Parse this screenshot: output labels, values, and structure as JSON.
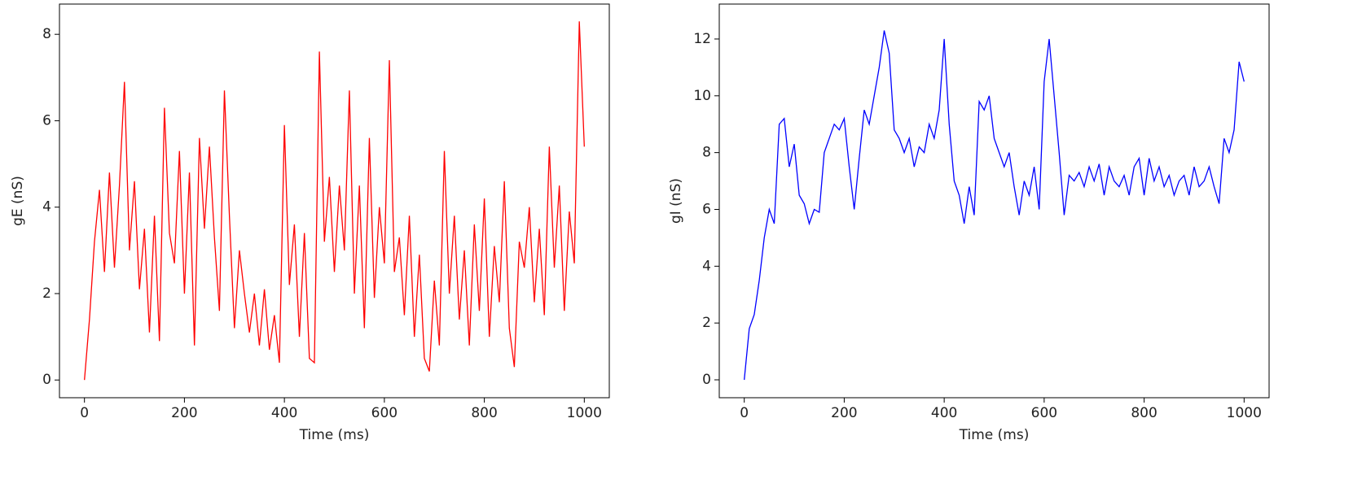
{
  "chart_data": [
    {
      "type": "line",
      "xlabel": "Time (ms)",
      "ylabel": "gE (nS)",
      "x": [
        0,
        10,
        20,
        30,
        40,
        50,
        60,
        70,
        80,
        90,
        100,
        110,
        120,
        130,
        140,
        150,
        160,
        170,
        180,
        190,
        200,
        210,
        220,
        230,
        240,
        250,
        260,
        270,
        280,
        290,
        300,
        310,
        320,
        330,
        340,
        350,
        360,
        370,
        380,
        390,
        400,
        410,
        420,
        430,
        440,
        450,
        460,
        470,
        480,
        490,
        500,
        510,
        520,
        530,
        540,
        550,
        560,
        570,
        580,
        590,
        600,
        610,
        620,
        630,
        640,
        650,
        660,
        670,
        680,
        690,
        700,
        710,
        720,
        730,
        740,
        750,
        760,
        770,
        780,
        790,
        800,
        810,
        820,
        830,
        840,
        850,
        860,
        870,
        880,
        890,
        900,
        910,
        920,
        930,
        940,
        950,
        960,
        970,
        980,
        990,
        1000
      ],
      "series": [
        {
          "color": "#ff0000",
          "values": [
            0,
            1.4,
            3.2,
            4.4,
            2.5,
            4.8,
            2.6,
            4.5,
            6.9,
            3.0,
            4.6,
            2.1,
            3.5,
            1.1,
            3.8,
            0.9,
            6.3,
            3.4,
            2.7,
            5.3,
            2.0,
            4.8,
            0.8,
            5.6,
            3.5,
            5.4,
            3.3,
            1.6,
            6.7,
            3.8,
            1.2,
            3.0,
            2.0,
            1.1,
            2.0,
            0.8,
            2.1,
            0.7,
            1.5,
            0.4,
            5.9,
            2.2,
            3.6,
            1.0,
            3.4,
            0.5,
            0.4,
            7.6,
            3.2,
            4.7,
            2.5,
            4.5,
            3.0,
            6.7,
            2.0,
            4.5,
            1.2,
            5.6,
            1.9,
            4.0,
            2.7,
            7.4,
            2.5,
            3.3,
            1.5,
            3.8,
            1.0,
            2.9,
            0.5,
            0.2,
            2.3,
            0.8,
            5.3,
            2.0,
            3.8,
            1.4,
            3.0,
            0.8,
            3.6,
            1.6,
            4.2,
            1.0,
            3.1,
            1.8,
            4.6,
            1.2,
            0.3,
            3.2,
            2.6,
            4.0,
            1.8,
            3.5,
            1.5,
            5.4,
            2.6,
            4.5,
            1.6,
            3.9,
            2.7,
            8.3,
            5.4
          ]
        }
      ],
      "xlim": [
        -50,
        1050
      ],
      "ylim": [
        -0.41,
        8.7
      ],
      "xticks": [
        0,
        200,
        400,
        600,
        800,
        1000
      ],
      "yticks": [
        0,
        2,
        4,
        6,
        8
      ]
    },
    {
      "type": "line",
      "xlabel": "Time (ms)",
      "ylabel": "gI (nS)",
      "x": [
        0,
        10,
        20,
        30,
        40,
        50,
        60,
        70,
        80,
        90,
        100,
        110,
        120,
        130,
        140,
        150,
        160,
        170,
        180,
        190,
        200,
        210,
        220,
        230,
        240,
        250,
        260,
        270,
        280,
        290,
        300,
        310,
        320,
        330,
        340,
        350,
        360,
        370,
        380,
        390,
        400,
        410,
        420,
        430,
        440,
        450,
        460,
        470,
        480,
        490,
        500,
        510,
        520,
        530,
        540,
        550,
        560,
        570,
        580,
        590,
        600,
        610,
        620,
        630,
        640,
        650,
        660,
        670,
        680,
        690,
        700,
        710,
        720,
        730,
        740,
        750,
        760,
        770,
        780,
        790,
        800,
        810,
        820,
        830,
        840,
        850,
        860,
        870,
        880,
        890,
        900,
        910,
        920,
        930,
        940,
        950,
        960,
        970,
        980,
        990,
        1000
      ],
      "series": [
        {
          "color": "#0000ff",
          "values": [
            0,
            1.8,
            2.3,
            3.5,
            5.0,
            6.0,
            5.5,
            9.0,
            9.2,
            7.5,
            8.3,
            6.5,
            6.2,
            5.5,
            6.0,
            5.9,
            8.0,
            8.5,
            9.0,
            8.8,
            9.2,
            7.5,
            6.0,
            7.8,
            9.5,
            9.0,
            10.0,
            11.0,
            12.3,
            11.5,
            8.8,
            8.5,
            8.0,
            8.5,
            7.5,
            8.2,
            8.0,
            9.0,
            8.5,
            9.5,
            12.0,
            9.0,
            7.0,
            6.5,
            5.5,
            6.8,
            5.8,
            9.8,
            9.5,
            10.0,
            8.5,
            8.0,
            7.5,
            8.0,
            6.8,
            5.8,
            7.0,
            6.5,
            7.5,
            6.0,
            10.5,
            12.0,
            10.0,
            8.0,
            5.8,
            7.2,
            7.0,
            7.3,
            6.8,
            7.5,
            7.0,
            7.6,
            6.5,
            7.5,
            7.0,
            6.8,
            7.2,
            6.5,
            7.5,
            7.8,
            6.5,
            7.8,
            7.0,
            7.5,
            6.8,
            7.2,
            6.5,
            7.0,
            7.2,
            6.5,
            7.5,
            6.8,
            7.0,
            7.5,
            6.8,
            6.2,
            8.5,
            8.0,
            8.8,
            11.2,
            10.5
          ]
        }
      ],
      "xlim": [
        -50,
        1050
      ],
      "ylim": [
        -0.63,
        13.23
      ],
      "xticks": [
        0,
        200,
        400,
        600,
        800,
        1000
      ],
      "yticks": [
        0,
        2,
        4,
        6,
        8,
        10,
        12
      ]
    }
  ]
}
